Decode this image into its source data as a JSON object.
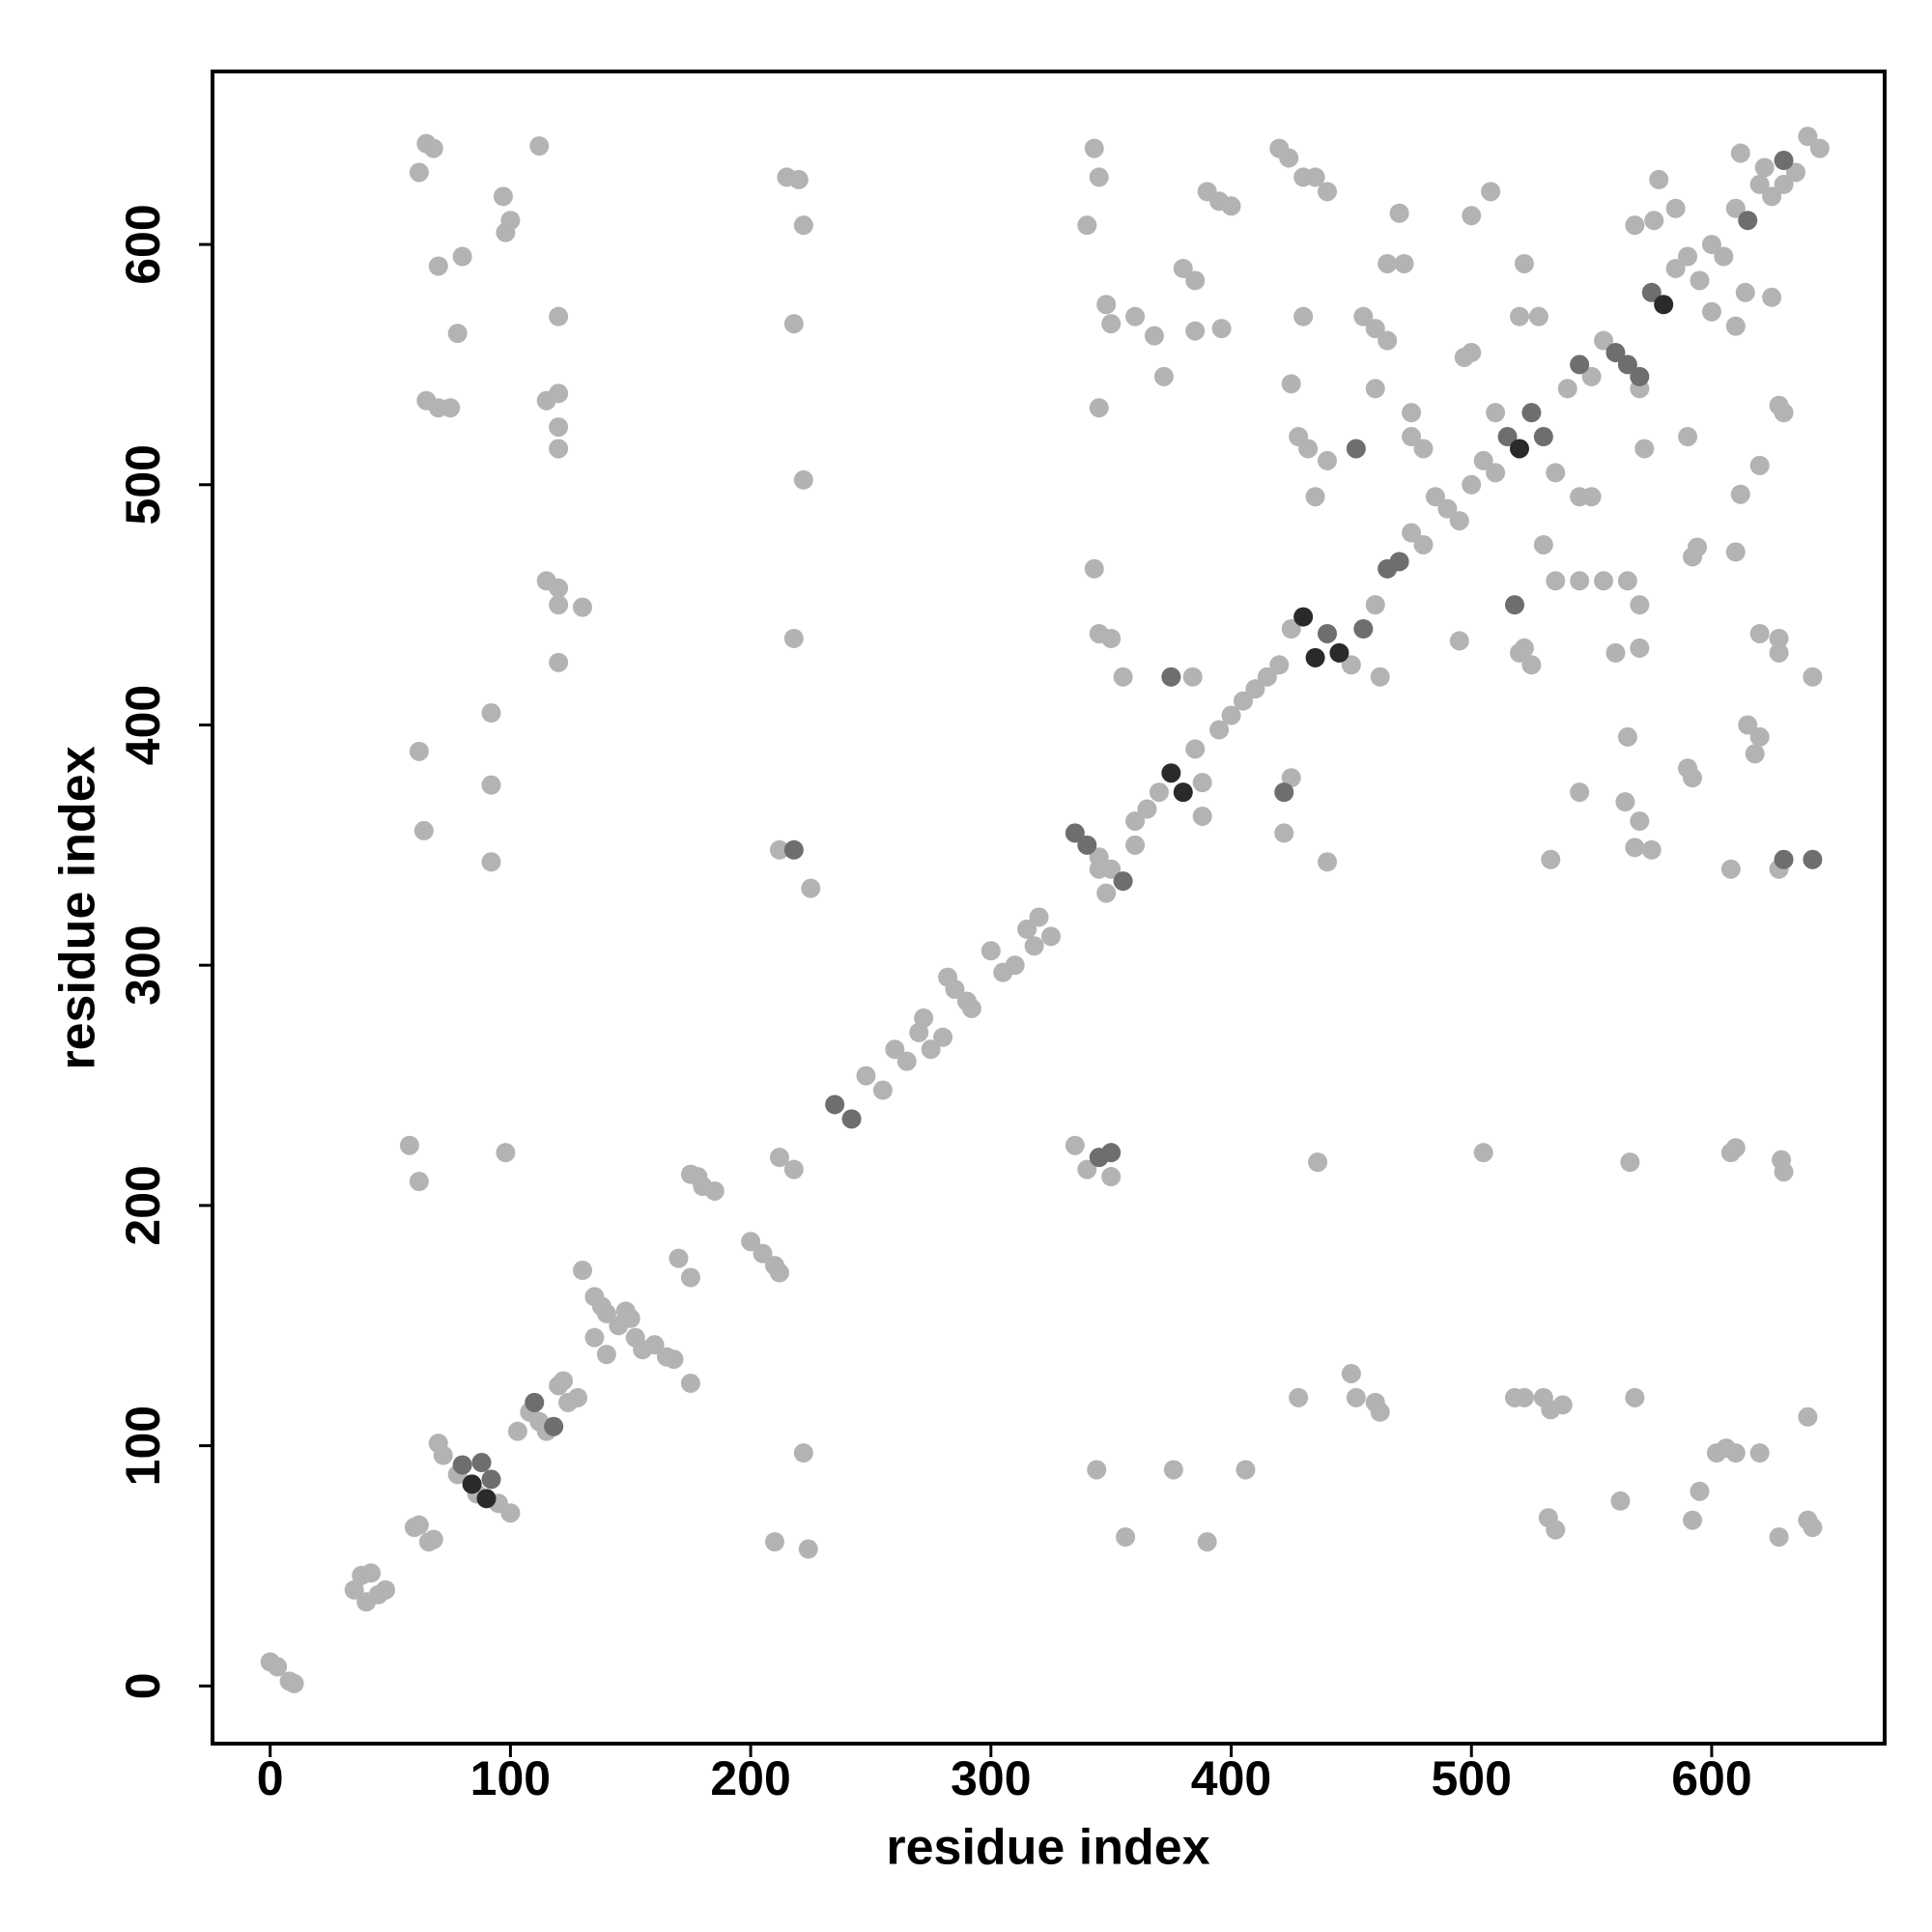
{
  "chart_data": {
    "type": "scatter",
    "xlabel": "residue index",
    "ylabel": "residue index",
    "xlim": [
      -24,
      672
    ],
    "ylim": [
      -24,
      672
    ],
    "xticks": [
      0,
      100,
      200,
      300,
      400,
      500,
      600
    ],
    "yticks": [
      0,
      100,
      200,
      300,
      400,
      500,
      600
    ],
    "series": [
      {
        "color": "#b3b3b3",
        "x": [
          0,
          3,
          8,
          10,
          35,
          38,
          42,
          40,
          45,
          48,
          60,
          62,
          66,
          68,
          70,
          72,
          78,
          86,
          95,
          100,
          103,
          108,
          112,
          115,
          120,
          122,
          124,
          128,
          135,
          138,
          140,
          145,
          148,
          150,
          152,
          155,
          160,
          165,
          168,
          175,
          130,
          135,
          140,
          170,
          175,
          175,
          180,
          185,
          178,
          200,
          205,
          210,
          212,
          212,
          218,
          248,
          255,
          260,
          265,
          270,
          275,
          272,
          280,
          282,
          285,
          290,
          292,
          300,
          305,
          310,
          315,
          320,
          325,
          318,
          345,
          350,
          360,
          365,
          370,
          385,
          388,
          395,
          400,
          405,
          410,
          415,
          420,
          425,
          450,
          460,
          462,
          475,
          480,
          485,
          490,
          495,
          500,
          505,
          510,
          535,
          540,
          550,
          555,
          585,
          590,
          595,
          600,
          605,
          610,
          620,
          625,
          635,
          640,
          645,
          62,
          65,
          68,
          70,
          80,
          78,
          65,
          70,
          75,
          97,
          98,
          100,
          112,
          120,
          115,
          120,
          120,
          120,
          115,
          120,
          120,
          130,
          120,
          92,
          92,
          92,
          62,
          64,
          58,
          62,
          98,
          215,
          220,
          222,
          218,
          222,
          218,
          212,
          225,
          210,
          224,
          222,
          340,
          343,
          345,
          345,
          348,
          350,
          343,
          345,
          350,
          355,
          345,
          348,
          335,
          340,
          350,
          344,
          356,
          376,
          390,
          406,
          390,
          395,
          400,
          380,
          385,
          385,
          360,
          368,
          372,
          396,
          384,
          388,
          360,
          420,
          424,
          430,
          435,
          440,
          425,
          428,
          432,
          430,
          435,
          440,
          425,
          422,
          440,
          436,
          428,
          450,
          452,
          460,
          462,
          460,
          455,
          465,
          460,
          470,
          465,
          472,
          475,
          475,
          480,
          500,
          508,
          500,
          497,
          510,
          520,
          528,
          522,
          495,
          520,
          530,
          535,
          545,
          555,
          565,
          570,
          560,
          570,
          522,
          525,
          545,
          550,
          505,
          522,
          518,
          530,
          533,
          538,
          532,
          535,
          568,
          566,
          564,
          568,
          575,
          565,
          570,
          545,
          533,
          590,
          592,
          562,
          595,
          592,
          602,
          606,
          610,
          620,
          608,
          610,
          629,
          630,
          628,
          640,
          642,
          640,
          608,
          628,
          642,
          620,
          615,
          618,
          620,
          628,
          628,
          610,
          612,
          620,
          628,
          630,
          600,
          610,
          614,
          625,
          576,
          568,
          578,
          585,
          612,
          622,
          630,
          570,
          572,
          590,
          592,
          594
        ],
        "y": [
          10,
          8,
          2,
          1,
          40,
          46,
          47,
          35,
          38,
          40,
          66,
          67,
          60,
          61,
          101,
          96,
          88,
          80,
          76,
          72,
          106,
          114,
          110,
          106,
          125,
          127,
          118,
          120,
          162,
          158,
          155,
          150,
          156,
          153,
          145,
          140,
          142,
          137,
          136,
          126,
          173,
          145,
          138,
          178,
          170,
          213,
          208,
          206,
          212,
          185,
          180,
          175,
          172,
          220,
          215,
          254,
          248,
          265,
          260,
          272,
          265,
          278,
          270,
          295,
          290,
          285,
          282,
          306,
          297,
          300,
          315,
          320,
          312,
          308,
          345,
          340,
          360,
          365,
          372,
          390,
          376,
          398,
          404,
          410,
          415,
          420,
          425,
          440,
          425,
          450,
          420,
          480,
          475,
          495,
          490,
          485,
          500,
          510,
          505,
          505,
          540,
          545,
          560,
          590,
          595,
          585,
          600,
          595,
          615,
          625,
          620,
          630,
          645,
          640,
          630,
          642,
          640,
          591,
          595,
          563,
          535,
          532,
          532,
          620,
          605,
          610,
          641,
          570,
          535,
          538,
          524,
          515,
          460,
          457,
          450,
          449,
          426,
          405,
          375,
          343,
          389,
          356,
          225,
          210,
          222,
          628,
          627,
          608,
          567,
          502,
          436,
          348,
          332,
          60,
          57,
          97,
          608,
          640,
          628,
          532,
          575,
          567,
          465,
          438,
          436,
          420,
          340,
          330,
          225,
          215,
          212,
          90,
          62,
          90,
          60,
          90,
          622,
          618,
          616,
          590,
          585,
          564,
          570,
          562,
          545,
          565,
          420,
          362,
          350,
          640,
          636,
          628,
          628,
          622,
          542,
          520,
          515,
          570,
          495,
          510,
          378,
          355,
          343,
          218,
          120,
          130,
          120,
          118,
          114,
          565,
          570,
          560,
          540,
          613,
          592,
          592,
          530,
          520,
          515,
          612,
          622,
          555,
          553,
          530,
          570,
          570,
          592,
          435,
          430,
          475,
          460,
          460,
          460,
          460,
          450,
          430,
          432,
          432,
          425,
          495,
          495,
          222,
          120,
          120,
          120,
          115,
          117,
          70,
          65,
          120,
          218,
          368,
          349,
          348,
          395,
          360,
          372,
          344,
          382,
          378,
          77,
          81,
          69,
          97,
          99,
          97,
          97,
          222,
          224,
          219,
          214,
          62,
          69,
          66,
          112,
          340,
          340,
          420,
          395,
          400,
          388,
          438,
          436,
          430,
          472,
          496,
          508,
          533,
          530,
          572,
          566,
          580,
          578,
          610,
          608,
          627,
          615,
          638,
          632,
          625,
          540,
          515,
          520,
          470,
          474
        ]
      },
      {
        "color": "#6e6e6e",
        "x": [
          80,
          88,
          92,
          110,
          118,
          235,
          242,
          340,
          355,
          218,
          345,
          350,
          375,
          465,
          470,
          515,
          525,
          545,
          560,
          565,
          570,
          575,
          615,
          630,
          530,
          440,
          455,
          518,
          452,
          422,
          335,
          630,
          642
        ],
        "y": [
          92,
          93,
          86,
          118,
          108,
          242,
          236,
          350,
          335,
          348,
          220,
          222,
          420,
          465,
          468,
          520,
          530,
          550,
          555,
          550,
          545,
          580,
          610,
          635,
          520,
          438,
          440,
          450,
          515,
          372,
          355,
          344,
          344
        ]
      },
      {
        "color": "#2a2a2a",
        "x": [
          84,
          90,
          375,
          380,
          430,
          435,
          445,
          520,
          580
        ],
        "y": [
          84,
          78,
          380,
          372,
          445,
          428,
          430,
          515,
          575
        ]
      }
    ]
  }
}
